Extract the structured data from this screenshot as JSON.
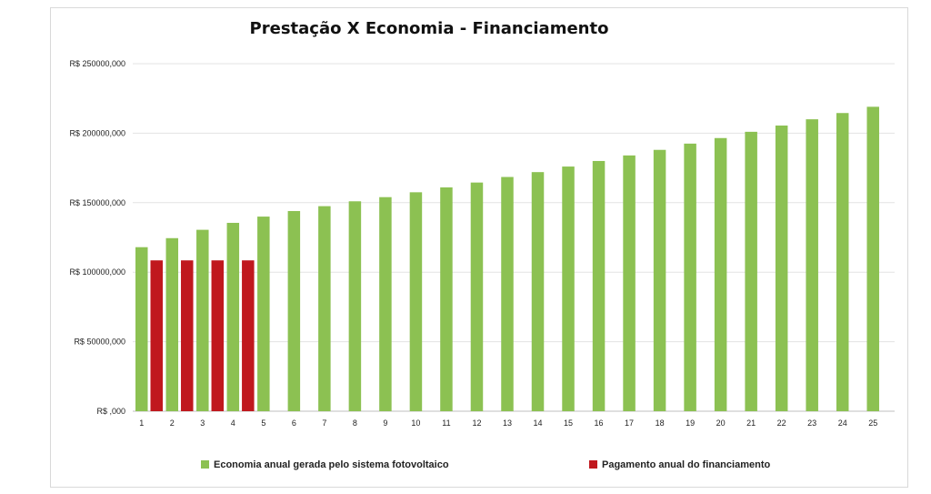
{
  "chart_data": {
    "type": "bar",
    "title": "Prestação X Economia - Financiamento",
    "xlabel": "",
    "ylabel": "",
    "ylim": [
      0,
      250000
    ],
    "yticks": [
      0,
      50000,
      100000,
      150000,
      200000,
      250000
    ],
    "ytick_labels": [
      "R$ ,000",
      "R$ 50000,000",
      "R$ 100000,000",
      "R$ 150000,000",
      "R$ 200000,000",
      "R$ 250000,000"
    ],
    "grid": true,
    "legend_position": "bottom",
    "categories": [
      "1",
      "2",
      "3",
      "4",
      "5",
      "6",
      "7",
      "8",
      "9",
      "10",
      "11",
      "12",
      "13",
      "14",
      "15",
      "16",
      "17",
      "18",
      "19",
      "20",
      "21",
      "22",
      "23",
      "24",
      "25"
    ],
    "series": [
      {
        "name": "Economia anual gerada pelo sistema fotovoltaico",
        "color": "#8cc152",
        "values": [
          118000,
          124500,
          130500,
          135500,
          140000,
          144000,
          147500,
          151000,
          154000,
          157500,
          161000,
          164500,
          168500,
          172000,
          176000,
          180000,
          184000,
          188000,
          192500,
          196500,
          201000,
          205500,
          210000,
          214500,
          219000
        ]
      },
      {
        "name": "Pagamento anual do financiamento",
        "color": "#c0181e",
        "values": [
          108500,
          108500,
          108500,
          108500,
          null,
          null,
          null,
          null,
          null,
          null,
          null,
          null,
          null,
          null,
          null,
          null,
          null,
          null,
          null,
          null,
          null,
          null,
          null,
          null,
          null
        ]
      }
    ]
  }
}
